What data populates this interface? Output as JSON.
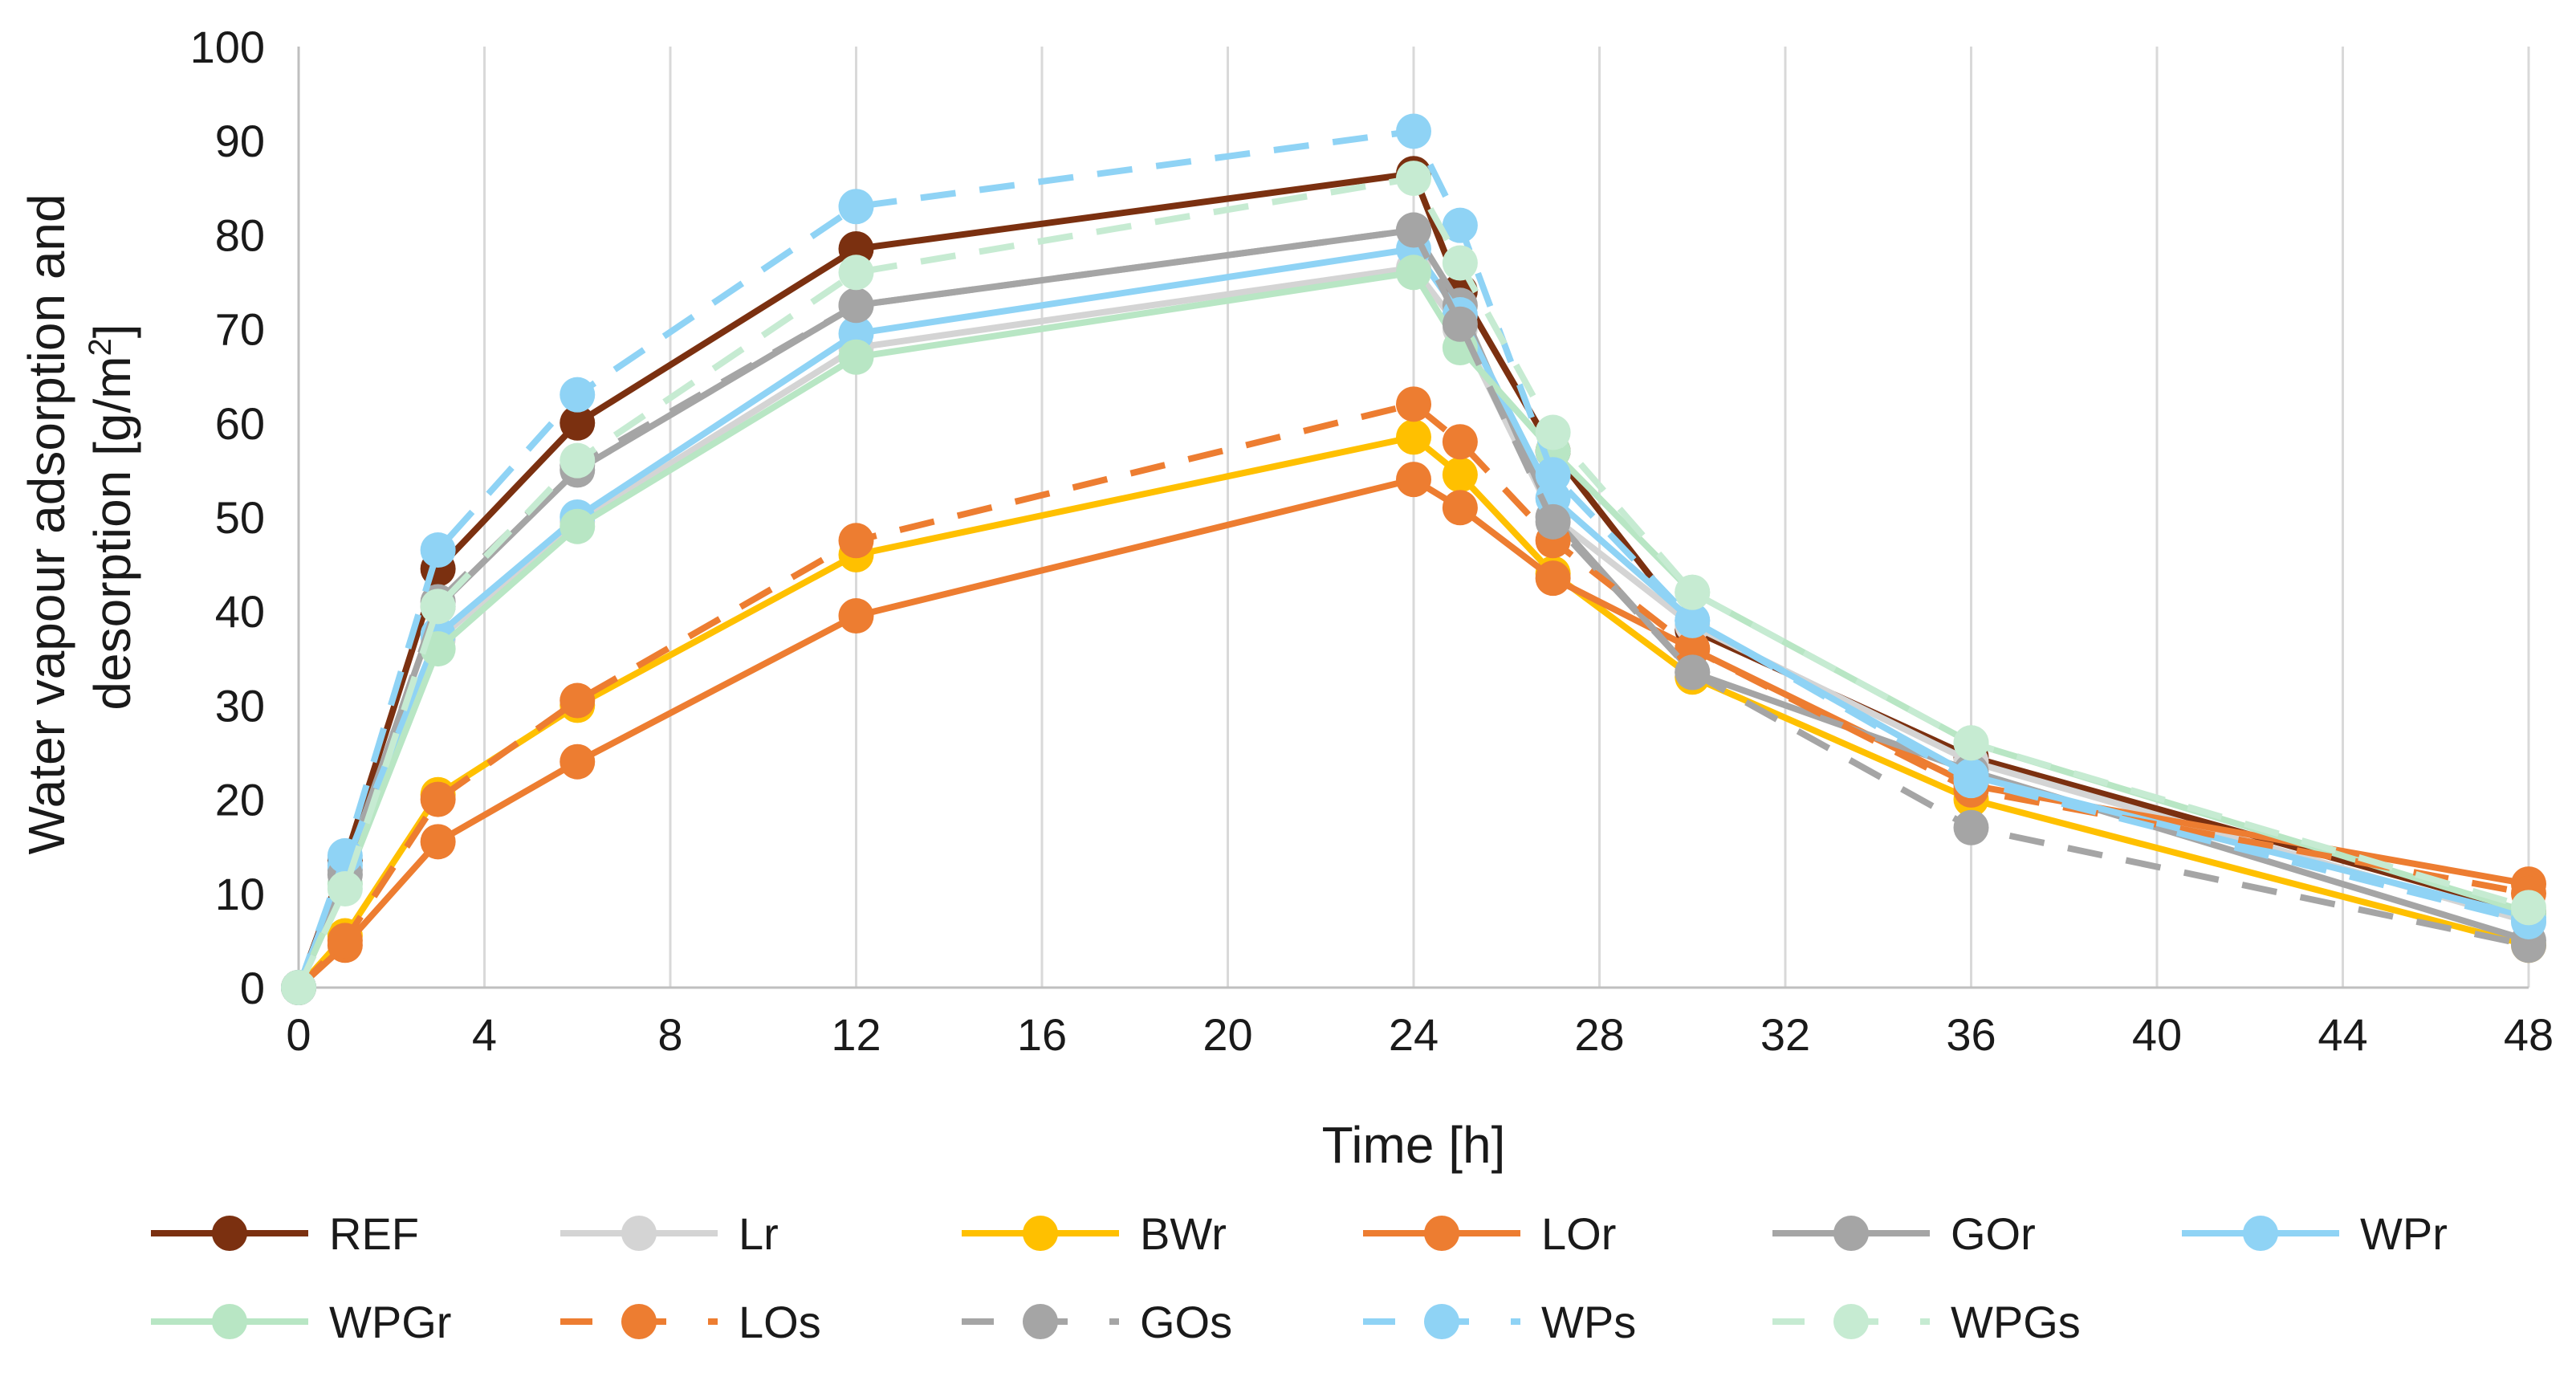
{
  "chart_data": {
    "type": "line",
    "title": "",
    "xlabel": "Time [h]",
    "ylabel": "Water vapour adsorption and desorption [g/m²]",
    "ylabel_lines": [
      "Water vapour adsorption and",
      "desorption [g/m",
      "2",
      "]"
    ],
    "xlim": [
      0,
      48
    ],
    "ylim": [
      0,
      100
    ],
    "x_ticks": [
      0,
      4,
      8,
      12,
      16,
      20,
      24,
      28,
      32,
      36,
      40,
      44,
      48
    ],
    "y_ticks": [
      0,
      10,
      20,
      30,
      40,
      50,
      60,
      70,
      80,
      90,
      100
    ],
    "x_tick_labels": [
      "0",
      "4",
      "8",
      "12",
      "16",
      "20",
      "24",
      "28",
      "32",
      "36",
      "40",
      "44",
      "48"
    ],
    "y_tick_labels": [
      "0",
      "10",
      "20",
      "30",
      "40",
      "50",
      "60",
      "70",
      "80",
      "90",
      "100"
    ],
    "grid": "vertical",
    "legend_position": "bottom",
    "x": [
      0,
      1,
      3,
      6,
      12,
      24,
      25,
      27,
      30,
      36,
      48
    ],
    "series": [
      {
        "name": "REF",
        "color": "#7b3010",
        "dashed": false,
        "values": [
          0,
          13.5,
          44.5,
          60,
          78.5,
          86.5,
          74,
          57,
          38,
          24.5,
          8
        ]
      },
      {
        "name": "Lr",
        "color": "#d4d4d4",
        "dashed": false,
        "values": [
          0,
          12,
          37,
          49.5,
          68,
          76.5,
          70,
          50,
          38.5,
          24,
          7
        ]
      },
      {
        "name": "BWr",
        "color": "#ffc000",
        "dashed": false,
        "values": [
          0,
          5.5,
          20.5,
          30,
          46,
          58.5,
          54.5,
          44,
          33,
          20,
          4.5
        ]
      },
      {
        "name": "LOr",
        "color": "#ed7d31",
        "dashed": false,
        "values": [
          0,
          4.5,
          15.5,
          24,
          39.5,
          54,
          51,
          43.5,
          36,
          21.5,
          11
        ]
      },
      {
        "name": "GOr",
        "color": "#a5a5a5",
        "dashed": false,
        "values": [
          0,
          12.5,
          40.5,
          55,
          72.5,
          80.5,
          72.5,
          50,
          33.5,
          23,
          5
        ]
      },
      {
        "name": "WPr",
        "color": "#8fd3f5",
        "dashed": false,
        "values": [
          0,
          13,
          37.5,
          50,
          69.5,
          78.5,
          71.5,
          52,
          39,
          22.5,
          7.5
        ]
      },
      {
        "name": "WPGr",
        "color": "#b8e6c4",
        "dashed": false,
        "values": [
          0,
          11,
          36,
          49,
          67,
          76,
          68,
          57,
          42,
          26,
          8
        ]
      },
      {
        "name": "LOs",
        "color": "#ed7d31",
        "dashed": true,
        "values": [
          0,
          5,
          20,
          30.5,
          47.5,
          62,
          58,
          47.5,
          36,
          21,
          10
        ]
      },
      {
        "name": "GOs",
        "color": "#a5a5a5",
        "dashed": true,
        "values": [
          0,
          12,
          41,
          55.5,
          72.5,
          80.5,
          70.5,
          49.5,
          33.5,
          17,
          4.5
        ]
      },
      {
        "name": "WPs",
        "color": "#8fd3f5",
        "dashed": true,
        "values": [
          0,
          14,
          46.5,
          63,
          83,
          91,
          81,
          54.5,
          39,
          22,
          7
        ]
      },
      {
        "name": "WPGs",
        "color": "#c6ebd2",
        "dashed": true,
        "values": [
          0,
          10.5,
          40.5,
          56,
          76,
          86,
          77,
          59,
          42,
          26,
          8.5
        ]
      }
    ]
  }
}
